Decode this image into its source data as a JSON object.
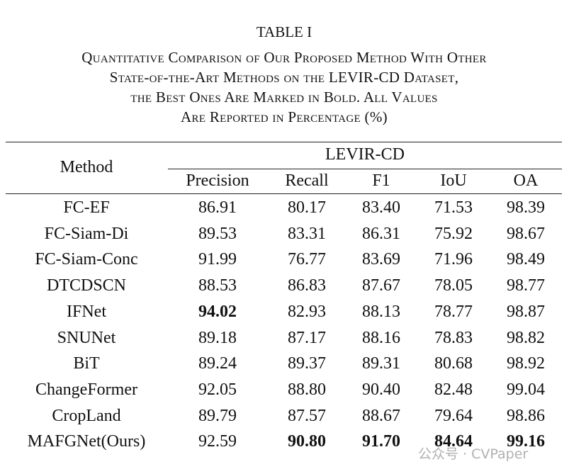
{
  "title": "TABLE I",
  "caption": [
    "Quantitative Comparison of Our Proposed Method With Other",
    "State-of-the-Art Methods on the LEVIR-CD Dataset,",
    "the Best Ones Are Marked in Bold. All Values",
    "Are Reported in Percentage (%)"
  ],
  "table": {
    "method_header": "Method",
    "group_header": "LEVIR-CD",
    "columns": [
      "Precision",
      "Recall",
      "F1",
      "IoU",
      "OA"
    ],
    "rows": [
      [
        "FC-EF",
        "86.91",
        "80.17",
        "83.40",
        "71.53",
        "98.39"
      ],
      [
        "FC-Siam-Di",
        "89.53",
        "83.31",
        "86.31",
        "75.92",
        "98.67"
      ],
      [
        "FC-Siam-Conc",
        "91.99",
        "76.77",
        "83.69",
        "71.96",
        "98.49"
      ],
      [
        "DTCDSCN",
        "88.53",
        "86.83",
        "87.67",
        "78.05",
        "98.77"
      ],
      [
        "IFNet",
        "94.02",
        "82.93",
        "88.13",
        "78.77",
        "98.87"
      ],
      [
        "SNUNet",
        "89.18",
        "87.17",
        "88.16",
        "78.83",
        "98.82"
      ],
      [
        "BiT",
        "89.24",
        "89.37",
        "89.31",
        "80.68",
        "98.92"
      ],
      [
        "ChangeFormer",
        "92.05",
        "88.80",
        "90.40",
        "82.48",
        "99.04"
      ],
      [
        "CropLand",
        "89.79",
        "87.57",
        "88.67",
        "79.64",
        "98.86"
      ],
      [
        "MAFGNet(Ours)",
        "92.59",
        "90.80",
        "91.70",
        "84.64",
        "99.16"
      ]
    ],
    "bold_cells": [
      [
        4,
        1
      ],
      [
        9,
        2
      ],
      [
        9,
        3
      ],
      [
        9,
        4
      ],
      [
        9,
        5
      ]
    ]
  },
  "watermark": "公众号 · CVPaper"
}
